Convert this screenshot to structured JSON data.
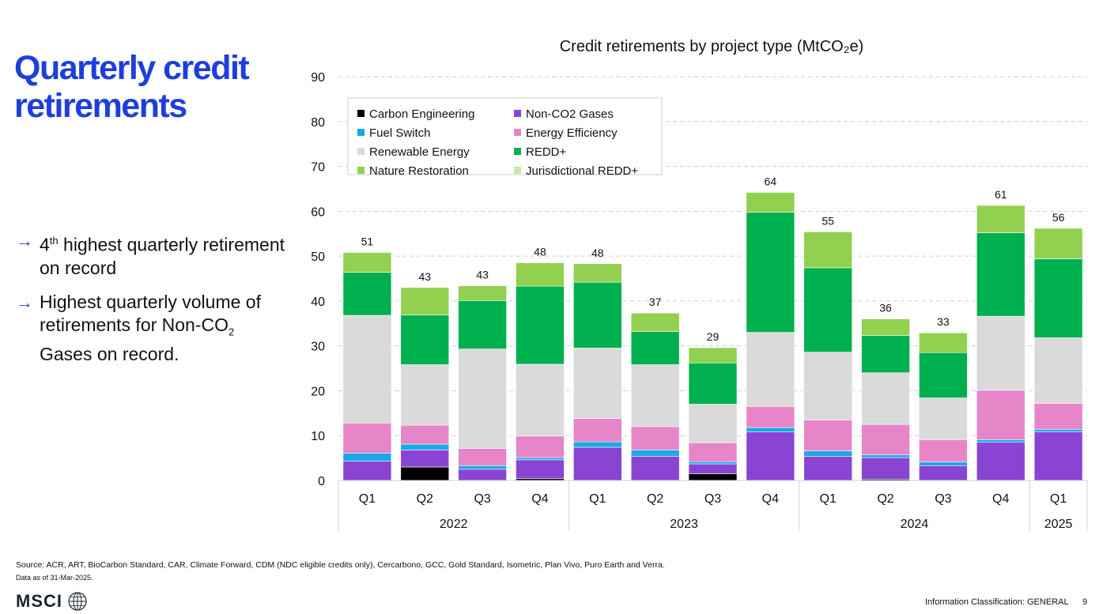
{
  "slide": {
    "title": "Quarterly credit retirements",
    "bullets": [
      {
        "pre": "4",
        "sup": "th",
        "post": " highest quarterly retirement on record"
      },
      {
        "pre": "Highest quarterly volume of retirements for Non-CO",
        "sub": "2",
        "post": " Gases on record."
      }
    ],
    "source": "Source: ACR, ART, BioCarbon Standard, CAR, Climate Forward, CDM (NDC eligible credits only), Cercarbono, GCC, Gold Standard, Isometric, Plan Vivo, Puro Earth and Verra.",
    "data_as_of": "Data as of 31-Mar-2025.",
    "logo_text": "MSCI",
    "classification": "Information Classification: GENERAL",
    "page_number": "9",
    "accent_color": "#1e3fdc"
  },
  "chart_data": {
    "type": "bar",
    "stacked": true,
    "title": "Credit retirements by project type (MtCO₂e)",
    "ylim": [
      0,
      90
    ],
    "yticks": [
      0,
      10,
      20,
      30,
      40,
      50,
      60,
      70,
      80,
      90
    ],
    "grid": true,
    "legend_position": "top-left",
    "categories": [
      "Q1",
      "Q2",
      "Q3",
      "Q4",
      "Q1",
      "Q2",
      "Q3",
      "Q4",
      "Q1",
      "Q2",
      "Q3",
      "Q4",
      "Q1"
    ],
    "year_groups": [
      {
        "label": "2022",
        "count": 4
      },
      {
        "label": "2023",
        "count": 4
      },
      {
        "label": "2024",
        "count": 4
      },
      {
        "label": "2025",
        "count": 1
      }
    ],
    "totals": [
      "51",
      "43",
      "43",
      "48",
      "48",
      "37",
      "29",
      "64",
      "55",
      "36",
      "33",
      "61",
      "56"
    ],
    "series": [
      {
        "name": "Carbon Engineering",
        "color": "#000000",
        "values": [
          0,
          3,
          0,
          0.4,
          0,
          0,
          1.5,
          0,
          0,
          0.3,
          0,
          0,
          0
        ]
      },
      {
        "name": "Non-CO2 Gases",
        "color": "#8a44d4",
        "values": [
          4.3,
          3.8,
          2.5,
          4.2,
          7.4,
          5.4,
          2.2,
          10.8,
          5.4,
          4.8,
          3.3,
          8.5,
          10.8
        ]
      },
      {
        "name": "Fuel Switch",
        "color": "#1ba8e6",
        "values": [
          1.8,
          1.3,
          0.8,
          0.5,
          1.2,
          1.4,
          0.5,
          1.0,
          1.2,
          0.6,
          0.8,
          0.6,
          0.6
        ]
      },
      {
        "name": "Energy Efficiency",
        "color": "#e685c8",
        "values": [
          6.7,
          4.2,
          3.8,
          4.8,
          5.2,
          5.2,
          4.2,
          4.7,
          6.9,
          6.8,
          5.0,
          11.0,
          5.8
        ]
      },
      {
        "name": "Renewable Energy",
        "color": "#dadada",
        "values": [
          24.0,
          13.5,
          22.2,
          16.0,
          15.7,
          13.8,
          8.6,
          16.5,
          15.1,
          11.5,
          9.3,
          16.5,
          14.6
        ]
      },
      {
        "name": "REDD+",
        "color": "#00b04f",
        "values": [
          9.6,
          11.1,
          10.8,
          17.4,
          14.7,
          7.4,
          9.2,
          26.8,
          18.8,
          8.3,
          10.1,
          18.6,
          17.6
        ]
      },
      {
        "name": "Nature Restoration",
        "color": "#92d050",
        "values": [
          4.4,
          6.1,
          3.3,
          5.2,
          4.1,
          4.1,
          3.4,
          4.4,
          8.0,
          3.7,
          4.4,
          6.1,
          6.8
        ]
      },
      {
        "name": "Jurisdictional REDD+",
        "color": "#c5e8a8",
        "values": [
          0,
          0,
          0,
          0,
          0,
          0,
          0,
          0,
          0,
          0,
          0,
          0,
          0
        ]
      }
    ]
  }
}
